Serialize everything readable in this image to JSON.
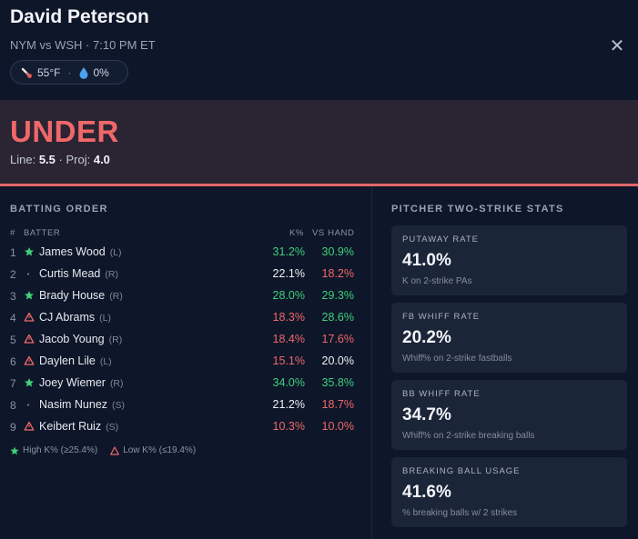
{
  "header": {
    "player_name": "David Peterson",
    "matchup": "NYM vs WSH · 7:10 PM ET",
    "close_symbol": "✕",
    "weather": {
      "temp": "55°F",
      "precip": "0%"
    }
  },
  "verdict": {
    "label": "UNDER",
    "line_label": "Line:",
    "line_value": "5.5",
    "proj_label": "Proj:",
    "proj_value": "4.0"
  },
  "batting_order": {
    "title": "BATTING ORDER",
    "columns": {
      "num": "#",
      "batter": "BATTER",
      "k": "K%",
      "vs": "VS HAND"
    },
    "rows": [
      {
        "num": "1",
        "mark": "star",
        "name": "James Wood",
        "hand": "(L)",
        "k": "31.2%",
        "k_color": "green",
        "vs": "30.9%",
        "vs_color": "green"
      },
      {
        "num": "2",
        "mark": "dot",
        "name": "Curtis Mead",
        "hand": "(R)",
        "k": "22.1%",
        "k_color": "white",
        "vs": "18.2%",
        "vs_color": "red"
      },
      {
        "num": "3",
        "mark": "star",
        "name": "Brady House",
        "hand": "(R)",
        "k": "28.0%",
        "k_color": "green",
        "vs": "29.3%",
        "vs_color": "green"
      },
      {
        "num": "4",
        "mark": "warn",
        "name": "CJ Abrams",
        "hand": "(L)",
        "k": "18.3%",
        "k_color": "red",
        "vs": "28.6%",
        "vs_color": "green"
      },
      {
        "num": "5",
        "mark": "warn",
        "name": "Jacob Young",
        "hand": "(R)",
        "k": "18.4%",
        "k_color": "red",
        "vs": "17.6%",
        "vs_color": "red"
      },
      {
        "num": "6",
        "mark": "warn",
        "name": "Daylen Lile",
        "hand": "(L)",
        "k": "15.1%",
        "k_color": "red",
        "vs": "20.0%",
        "vs_color": "white"
      },
      {
        "num": "7",
        "mark": "star",
        "name": "Joey Wiemer",
        "hand": "(R)",
        "k": "34.0%",
        "k_color": "green",
        "vs": "35.8%",
        "vs_color": "green"
      },
      {
        "num": "8",
        "mark": "dot",
        "name": "Nasim Nunez",
        "hand": "(S)",
        "k": "21.2%",
        "k_color": "white",
        "vs": "18.7%",
        "vs_color": "red"
      },
      {
        "num": "9",
        "mark": "warn",
        "name": "Keibert Ruiz",
        "hand": "(S)",
        "k": "10.3%",
        "k_color": "red",
        "vs": "10.0%",
        "vs_color": "red"
      }
    ],
    "legend": {
      "high": "High K% (≥25.4%)",
      "low": "Low K% (≤19.4%)"
    }
  },
  "pitcher_stats": {
    "title": "PITCHER TWO-STRIKE STATS",
    "cards": [
      {
        "title": "PUTAWAY RATE",
        "value": "41.0%",
        "sub": "K on 2-strike PAs"
      },
      {
        "title": "FB WHIFF RATE",
        "value": "20.2%",
        "sub": "Whiff% on 2-strike fastballs"
      },
      {
        "title": "BB WHIFF RATE",
        "value": "34.7%",
        "sub": "Whiff% on 2-strike breaking balls"
      },
      {
        "title": "BREAKING BALL USAGE",
        "value": "41.6%",
        "sub": "% breaking balls w/ 2 strikes"
      }
    ]
  },
  "colors": {
    "green": "#3fd07a",
    "red": "#f0686a",
    "white": "#eef1f6",
    "bg": "#0e1629",
    "verdict_bg": "#2b2433"
  },
  "icons": {
    "weather_temp": "thermometer-icon",
    "weather_precip": "droplet-icon",
    "high_k": "star-icon",
    "low_k": "warning-triangle-icon",
    "neutral": "dot-icon"
  }
}
